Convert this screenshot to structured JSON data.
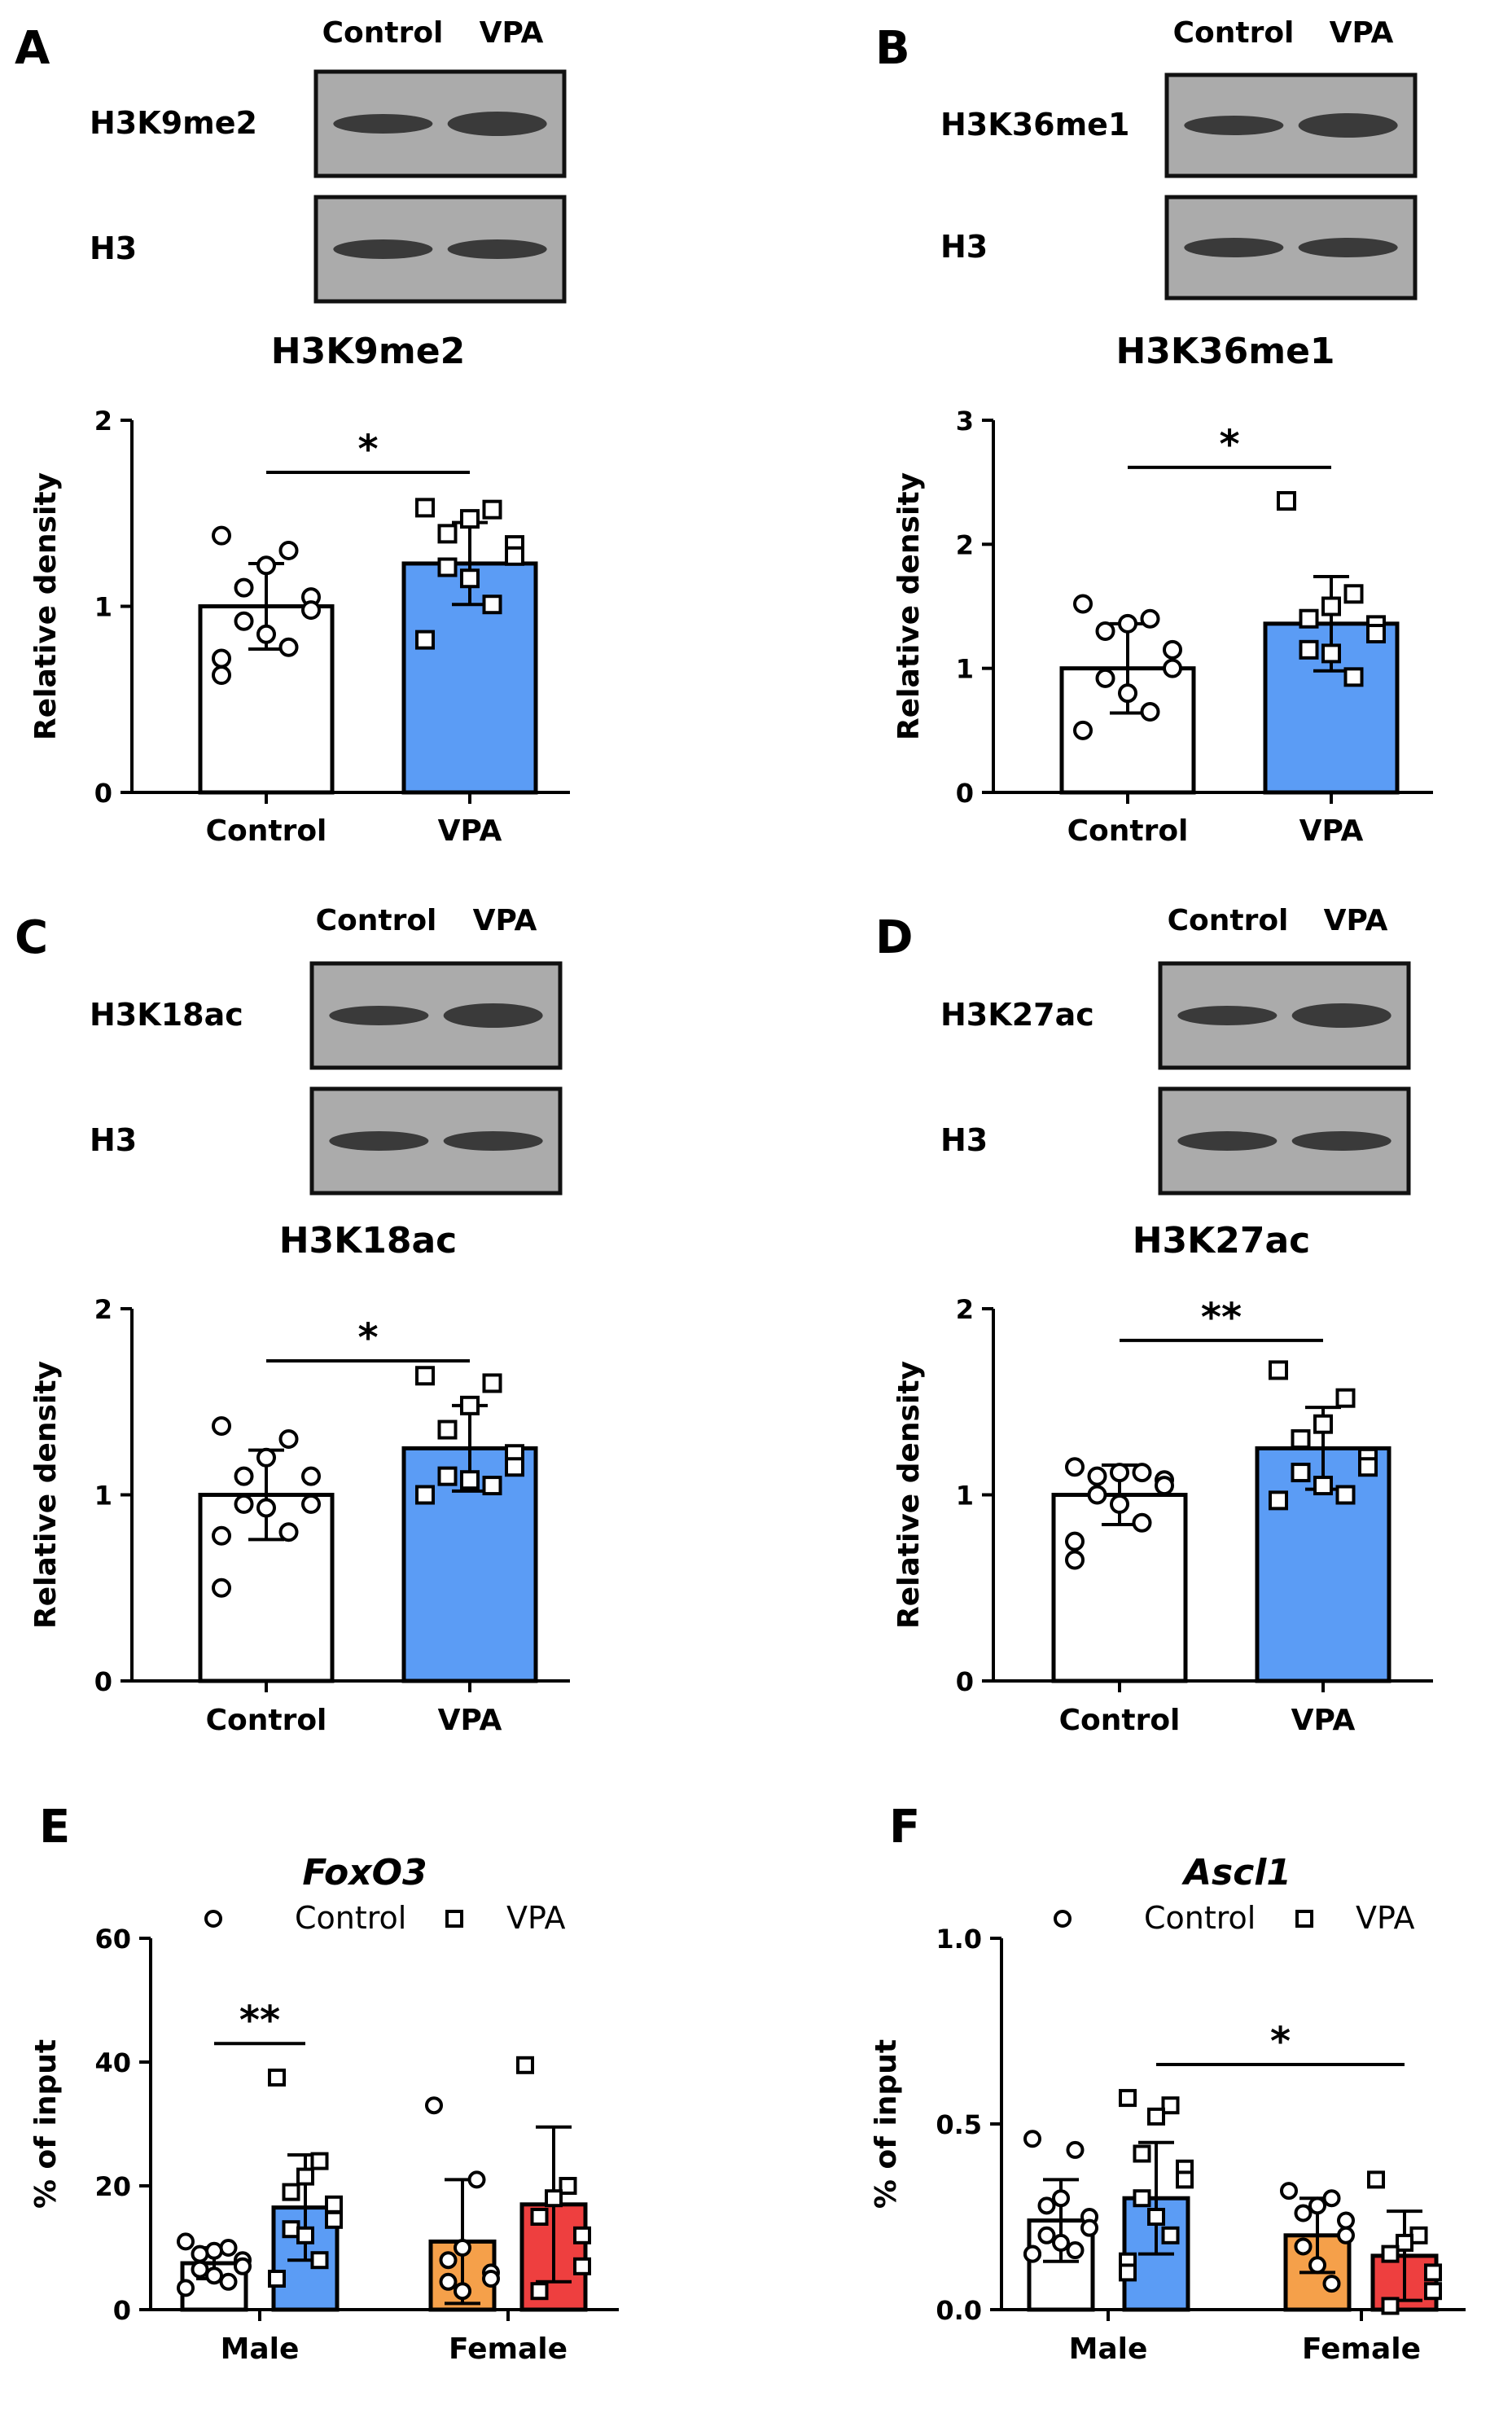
{
  "panels": [
    {
      "id": "A",
      "letter": "A",
      "blot": {
        "lanes": [
          "Control",
          "VPA"
        ],
        "rows": [
          "H3K9me2",
          "H3"
        ]
      }
    },
    {
      "id": "B",
      "letter": "B",
      "blot": {
        "lanes": [
          "Control",
          "VPA"
        ],
        "rows": [
          "H3K36me1",
          "H3"
        ]
      }
    },
    {
      "id": "C",
      "letter": "C",
      "blot": {
        "lanes": [
          "Control",
          "VPA"
        ],
        "rows": [
          "H3K18ac",
          "H3"
        ]
      }
    },
    {
      "id": "D",
      "letter": "D",
      "blot": {
        "lanes": [
          "Control",
          "VPA"
        ],
        "rows": [
          "H3K27ac",
          "H3"
        ]
      }
    },
    {
      "id": "E",
      "letter": "E"
    },
    {
      "id": "F",
      "letter": "F"
    }
  ],
  "colors": {
    "control": "#ffffff",
    "vpa": "#5b9cf5",
    "female_control": "#f5a04a",
    "female_vpa": "#ee3f3f",
    "axis": "#000000",
    "blot_bg": "#ababab",
    "blot_band": "#2e2e2e"
  },
  "chart_data": [
    {
      "panel": "A",
      "type": "bar",
      "title": "H3K9me2",
      "xlabel": "",
      "ylabel": "Relative density",
      "ylim": [
        0,
        2
      ],
      "yticks": [
        "0",
        "1",
        "2"
      ],
      "categories": [
        "Control",
        "VPA"
      ],
      "values": [
        1.0,
        1.23
      ],
      "sd": [
        0.23,
        0.22
      ],
      "points": [
        [
          1.38,
          1.3,
          1.22,
          1.1,
          1.05,
          0.98,
          0.92,
          0.85,
          0.78,
          0.72,
          0.63
        ],
        [
          1.53,
          1.52,
          1.47,
          1.39,
          1.33,
          1.27,
          1.21,
          1.15,
          1.01,
          0.82
        ]
      ],
      "significance": {
        "label": "*",
        "between": [
          0,
          1
        ],
        "y": 1.72
      }
    },
    {
      "panel": "B",
      "type": "bar",
      "title": "H3K36me1",
      "xlabel": "",
      "ylabel": "Relative density",
      "ylim": [
        0,
        3
      ],
      "yticks": [
        "0",
        "1",
        "2",
        "3"
      ],
      "categories": [
        "Control",
        "VPA"
      ],
      "values": [
        1.0,
        1.36
      ],
      "sd": [
        0.36,
        0.38
      ],
      "points": [
        [
          1.52,
          1.4,
          1.36,
          1.3,
          1.15,
          1.0,
          0.92,
          0.8,
          0.65,
          0.5
        ],
        [
          2.35,
          1.6,
          1.5,
          1.4,
          1.35,
          1.28,
          1.15,
          1.12,
          0.93
        ]
      ],
      "significance": {
        "label": "*",
        "between": [
          0,
          1
        ],
        "y": 2.62
      }
    },
    {
      "panel": "C",
      "type": "bar",
      "title": "H3K18ac",
      "xlabel": "",
      "ylabel": "Relative density",
      "ylim": [
        0,
        2
      ],
      "yticks": [
        "0",
        "1",
        "2"
      ],
      "categories": [
        "Control",
        "VPA"
      ],
      "values": [
        1.0,
        1.25
      ],
      "sd": [
        0.24,
        0.23
      ],
      "points": [
        [
          1.37,
          1.3,
          1.2,
          1.1,
          1.1,
          0.95,
          0.95,
          0.93,
          0.8,
          0.78,
          0.5
        ],
        [
          1.64,
          1.6,
          1.48,
          1.35,
          1.22,
          1.15,
          1.1,
          1.08,
          1.05,
          1.0
        ]
      ],
      "significance": {
        "label": "*",
        "between": [
          0,
          1
        ],
        "y": 1.72
      }
    },
    {
      "panel": "D",
      "type": "bar",
      "title": "H3K27ac",
      "xlabel": "",
      "ylabel": "Relative density",
      "ylim": [
        0,
        2
      ],
      "yticks": [
        "0",
        "1",
        "2"
      ],
      "categories": [
        "Control",
        "VPA"
      ],
      "values": [
        1.0,
        1.25
      ],
      "sd": [
        0.16,
        0.22
      ],
      "points": [
        [
          1.15,
          1.12,
          1.12,
          1.1,
          1.08,
          1.05,
          1.0,
          0.95,
          0.85,
          0.75,
          0.65
        ],
        [
          1.67,
          1.52,
          1.38,
          1.3,
          1.2,
          1.15,
          1.12,
          1.05,
          1.0,
          0.97
        ]
      ],
      "significance": {
        "label": "**",
        "between": [
          0,
          1
        ],
        "y": 1.83
      }
    },
    {
      "panel": "E",
      "type": "bar",
      "title": "FoxO3",
      "xlabel": "",
      "ylabel": "% of input",
      "ylim": [
        0,
        60
      ],
      "yticks": [
        "0",
        "20",
        "40",
        "60"
      ],
      "categories": [
        "Male",
        "Female"
      ],
      "legend": [
        "Control",
        "VPA"
      ],
      "series": [
        {
          "name": "Control",
          "values": [
            7.5,
            11.0
          ],
          "sd": [
            2.5,
            10.0
          ],
          "points": [
            [
              11,
              10,
              9.5,
              9,
              8,
              7,
              6.5,
              5.5,
              4.5,
              3.5
            ],
            [
              33,
              21,
              10,
              8,
              6,
              5,
              4.5,
              3
            ]
          ]
        },
        {
          "name": "VPA",
          "values": [
            16.5,
            17.0
          ],
          "sd": [
            8.5,
            12.5
          ],
          "points": [
            [
              37.5,
              24,
              21.5,
              19,
              17,
              14.5,
              13,
              12,
              8,
              5
            ],
            [
              39.5,
              20,
              18,
              15,
              12,
              7,
              3
            ]
          ]
        }
      ],
      "significance": {
        "label": "**",
        "between": [
          "Male Control",
          "Male VPA"
        ],
        "y": 43
      }
    },
    {
      "panel": "F",
      "type": "bar",
      "title": "Ascl1",
      "xlabel": "",
      "ylabel": "% of input",
      "ylim": [
        0,
        1.0
      ],
      "yticks": [
        "0.0",
        "0.5",
        "1.0"
      ],
      "categories": [
        "Male",
        "Female"
      ],
      "legend": [
        "Control",
        "VPA"
      ],
      "series": [
        {
          "name": "Control",
          "values": [
            0.24,
            0.2
          ],
          "sd": [
            0.11,
            0.1
          ],
          "points": [
            [
              0.46,
              0.43,
              0.3,
              0.28,
              0.25,
              0.22,
              0.2,
              0.18,
              0.16,
              0.15,
              0.15
            ],
            [
              0.32,
              0.3,
              0.28,
              0.26,
              0.24,
              0.2,
              0.17,
              0.12,
              0.07
            ]
          ]
        },
        {
          "name": "VPA",
          "values": [
            0.3,
            0.145
          ],
          "sd": [
            0.15,
            0.12
          ],
          "points": [
            [
              0.57,
              0.55,
              0.52,
              0.42,
              0.38,
              0.35,
              0.3,
              0.25,
              0.2,
              0.13,
              0.1
            ],
            [
              0.35,
              0.2,
              0.18,
              0.15,
              0.1,
              0.05,
              0.01
            ]
          ]
        }
      ],
      "significance": {
        "label": "*",
        "between": [
          "Male VPA",
          "Female VPA"
        ],
        "y": 0.66
      }
    }
  ]
}
